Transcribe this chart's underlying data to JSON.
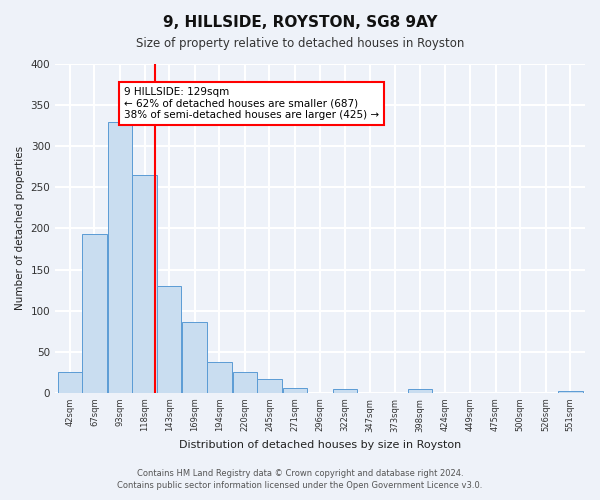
{
  "title": "9, HILLSIDE, ROYSTON, SG8 9AY",
  "subtitle": "Size of property relative to detached houses in Royston",
  "xlabel": "Distribution of detached houses by size in Royston",
  "ylabel": "Number of detached properties",
  "bar_labels": [
    "42sqm",
    "67sqm",
    "93sqm",
    "118sqm",
    "143sqm",
    "169sqm",
    "194sqm",
    "220sqm",
    "245sqm",
    "271sqm",
    "296sqm",
    "322sqm",
    "347sqm",
    "373sqm",
    "398sqm",
    "424sqm",
    "449sqm",
    "475sqm",
    "500sqm",
    "526sqm",
    "551sqm"
  ],
  "bar_values": [
    25,
    193,
    330,
    265,
    130,
    86,
    38,
    25,
    17,
    6,
    0,
    5,
    0,
    0,
    5,
    0,
    0,
    0,
    0,
    0,
    2
  ],
  "bar_color": "#c9ddf0",
  "bar_edge_color": "#5b9bd5",
  "property_line_x": 129,
  "property_line_label": "9 HILLSIDE: 129sqm",
  "annotation_line1": "← 62% of detached houses are smaller (687)",
  "annotation_line2": "38% of semi-detached houses are larger (425) →",
  "annotation_box_color": "white",
  "annotation_box_edge": "red",
  "vline_color": "red",
  "ylim": [
    0,
    400
  ],
  "yticks": [
    0,
    50,
    100,
    150,
    200,
    250,
    300,
    350,
    400
  ],
  "footnote1": "Contains HM Land Registry data © Crown copyright and database right 2024.",
  "footnote2": "Contains public sector information licensed under the Open Government Licence v3.0.",
  "background_color": "#eef2f9",
  "grid_color": "white",
  "bin_width": 25
}
